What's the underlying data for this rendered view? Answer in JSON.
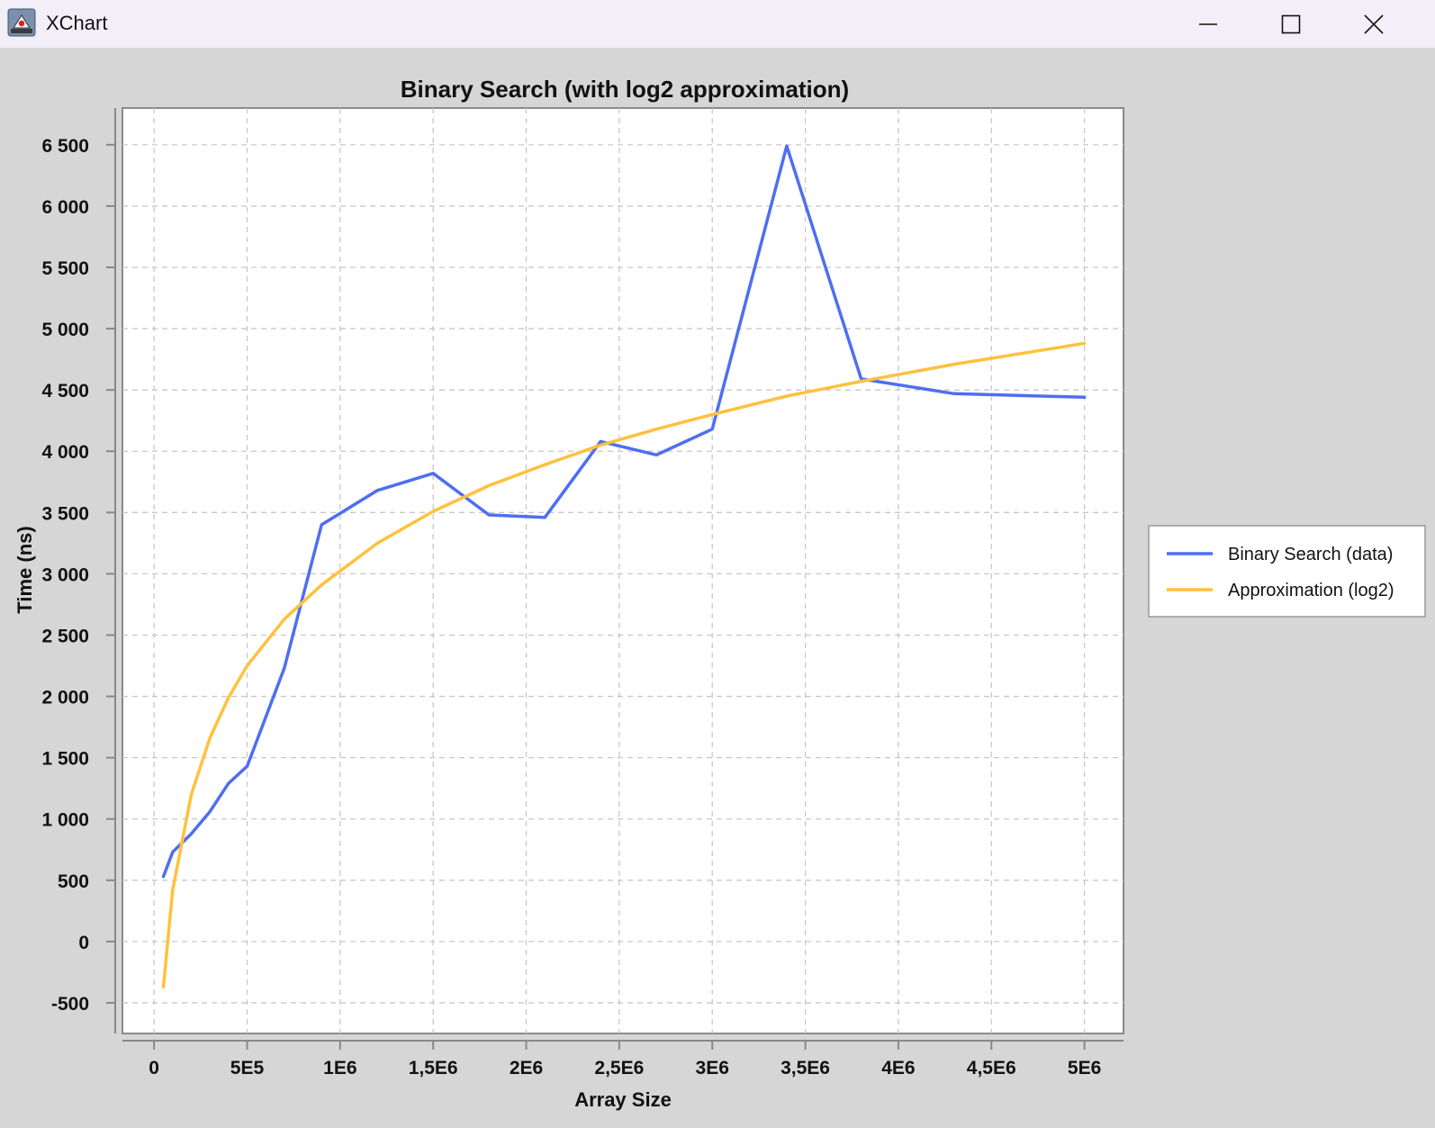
{
  "window": {
    "title": "XChart",
    "icons": [
      "java-icon",
      "minimize-icon",
      "maximize-icon",
      "close-icon"
    ]
  },
  "colors": {
    "window_background": "#d6d6d6",
    "plot_background": "#ffffff",
    "series_data": "#4e6ef2",
    "series_approx": "#ffc13d"
  },
  "chart_data": {
    "type": "line",
    "title": "Binary Search (with log2 approximation)",
    "xlabel": "Array Size",
    "ylabel": "Time (ns)",
    "xlim": [
      -170000,
      5210000
    ],
    "ylim": [
      -750,
      6800
    ],
    "x_ticks": [
      0,
      500000,
      1000000,
      1500000,
      2000000,
      2500000,
      3000000,
      3500000,
      4000000,
      4500000,
      5000000
    ],
    "x_tick_labels": [
      "0",
      "5E5",
      "1E6",
      "1,5E6",
      "2E6",
      "2,5E6",
      "3E6",
      "3,5E6",
      "4E6",
      "4,5E6",
      "5E6"
    ],
    "y_ticks": [
      -500,
      0,
      500,
      1000,
      1500,
      2000,
      2500,
      3000,
      3500,
      4000,
      4500,
      5000,
      5500,
      6000,
      6500
    ],
    "y_tick_labels": [
      "-500",
      "0",
      "500",
      "1 000",
      "1 500",
      "2 000",
      "2 500",
      "3 000",
      "3 500",
      "4 000",
      "4 500",
      "5 000",
      "5 500",
      "6 000",
      "6 500"
    ],
    "grid": true,
    "legend_position": "right",
    "series": [
      {
        "name": "Binary Search (data)",
        "color": "#4e6ef2",
        "x": [
          50000,
          100000,
          200000,
          300000,
          400000,
          500000,
          700000,
          900000,
          1200000,
          1500000,
          1800000,
          2100000,
          2400000,
          2700000,
          3000000,
          3400000,
          3800000,
          4300000,
          5000000
        ],
        "y": [
          530,
          730,
          880,
          1060,
          1290,
          1430,
          2230,
          3400,
          3680,
          3820,
          3480,
          3460,
          4080,
          3970,
          4180,
          6490,
          4590,
          4470,
          4440
        ]
      },
      {
        "name": "Approximation (log2)",
        "color": "#ffc13d",
        "x": [
          50000,
          100000,
          200000,
          300000,
          400000,
          500000,
          700000,
          900000,
          1200000,
          1500000,
          1800000,
          2100000,
          2400000,
          2700000,
          3000000,
          3400000,
          3800000,
          4300000,
          5000000
        ],
        "y": [
          -370,
          420,
          1200,
          1660,
          1990,
          2250,
          2630,
          2910,
          3250,
          3510,
          3720,
          3890,
          4050,
          4180,
          4300,
          4450,
          4570,
          4710,
          4880
        ]
      }
    ]
  }
}
